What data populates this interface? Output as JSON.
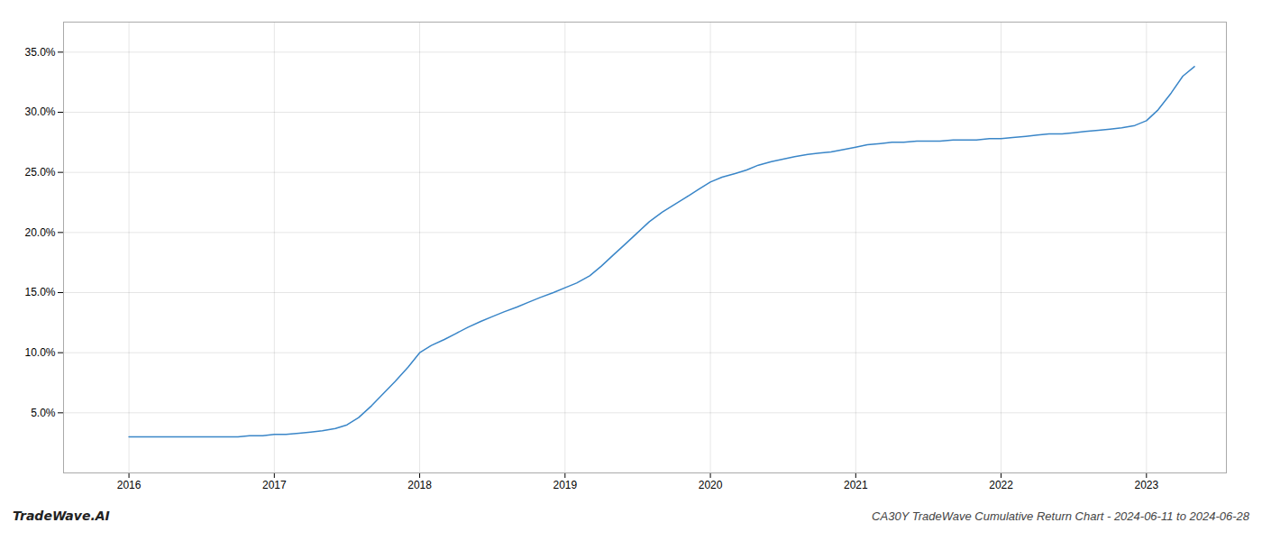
{
  "chart_data": {
    "type": "line",
    "title": "CA30Y TradeWave Cumulative Return Chart - 2024-06-11 to 2024-06-28",
    "annotations": [
      "TradeWave.AI"
    ],
    "color": "#3a86c8",
    "grid": true,
    "xlim": [
      2015.55,
      2023.55
    ],
    "ylim": [
      0.0,
      0.375
    ],
    "xticks": [
      2016,
      2017,
      2018,
      2019,
      2020,
      2021,
      2022,
      2023
    ],
    "yticks": [
      {
        "value": 0.05,
        "label": "5.0%"
      },
      {
        "value": 0.1,
        "label": "10.0%"
      },
      {
        "value": 0.15,
        "label": "15.0%"
      },
      {
        "value": 0.2,
        "label": "20.0%"
      },
      {
        "value": 0.25,
        "label": "25.0%"
      },
      {
        "value": 0.3,
        "label": "30.0%"
      },
      {
        "value": 0.35,
        "label": "35.0%"
      }
    ],
    "x": [
      2016.0,
      2016.08,
      2016.17,
      2016.25,
      2016.33,
      2016.42,
      2016.5,
      2016.58,
      2016.67,
      2016.75,
      2016.83,
      2016.92,
      2017.0,
      2017.08,
      2017.17,
      2017.25,
      2017.33,
      2017.42,
      2017.5,
      2017.58,
      2017.67,
      2017.75,
      2017.83,
      2017.92,
      2018.0,
      2018.08,
      2018.17,
      2018.25,
      2018.33,
      2018.42,
      2018.5,
      2018.58,
      2018.67,
      2018.75,
      2018.83,
      2018.92,
      2019.0,
      2019.08,
      2019.17,
      2019.25,
      2019.33,
      2019.42,
      2019.5,
      2019.58,
      2019.67,
      2019.75,
      2019.83,
      2019.92,
      2020.0,
      2020.08,
      2020.17,
      2020.25,
      2020.33,
      2020.42,
      2020.5,
      2020.58,
      2020.67,
      2020.75,
      2020.83,
      2020.92,
      2021.0,
      2021.08,
      2021.17,
      2021.25,
      2021.33,
      2021.42,
      2021.5,
      2021.58,
      2021.67,
      2021.75,
      2021.83,
      2021.92,
      2022.0,
      2022.08,
      2022.17,
      2022.25,
      2022.33,
      2022.42,
      2022.5,
      2022.58,
      2022.67,
      2022.75,
      2022.83,
      2022.92,
      2023.0,
      2023.08,
      2023.17,
      2023.25,
      2023.33
    ],
    "values": [
      0.03,
      0.03,
      0.03,
      0.03,
      0.03,
      0.03,
      0.03,
      0.03,
      0.03,
      0.03,
      0.031,
      0.031,
      0.032,
      0.032,
      0.033,
      0.034,
      0.035,
      0.037,
      0.04,
      0.046,
      0.056,
      0.066,
      0.076,
      0.088,
      0.1,
      0.106,
      0.111,
      0.116,
      0.121,
      0.126,
      0.13,
      0.134,
      0.138,
      0.142,
      0.146,
      0.15,
      0.154,
      0.158,
      0.164,
      0.172,
      0.181,
      0.191,
      0.2,
      0.209,
      0.217,
      0.223,
      0.229,
      0.236,
      0.242,
      0.246,
      0.249,
      0.252,
      0.256,
      0.259,
      0.261,
      0.263,
      0.265,
      0.266,
      0.267,
      0.269,
      0.271,
      0.273,
      0.274,
      0.275,
      0.275,
      0.276,
      0.276,
      0.276,
      0.277,
      0.277,
      0.277,
      0.278,
      0.278,
      0.279,
      0.28,
      0.281,
      0.282,
      0.282,
      0.283,
      0.284,
      0.285,
      0.286,
      0.287,
      0.289,
      0.293,
      0.302,
      0.316,
      0.33,
      0.338
    ]
  }
}
